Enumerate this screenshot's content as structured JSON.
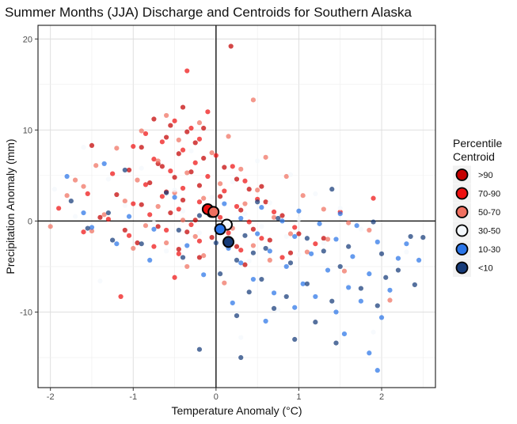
{
  "chart_data": {
    "type": "scatter",
    "title": "Summer Months (JJA) Discharge and Centroids for Southern Alaska",
    "xlabel": "Temperature Anomaly (°C)",
    "ylabel": "Precipitation Anomaly (mm)",
    "xlim": [
      -2.15,
      2.65
    ],
    "ylim": [
      -18.3,
      21.5
    ],
    "x_ticks": [
      -2,
      -1,
      0,
      1,
      2
    ],
    "x_tick_labels": [
      "-2",
      "-1",
      "0",
      "1",
      "2"
    ],
    "y_ticks": [
      -10,
      0,
      10,
      20
    ],
    "y_tick_labels": [
      "-10",
      "0",
      "10",
      "20"
    ],
    "grid": true,
    "zero_lines": true,
    "legend": {
      "title_line1": "Percentile",
      "title_line2": "Centroid",
      "position": "right"
    },
    "series": [
      {
        "name": ">90",
        "color": "#c40000",
        "centroid": {
          "x": -0.05,
          "y": 1.0
        },
        "points": [
          [
            0.18,
            19.2
          ],
          [
            -0.4,
            12.5
          ],
          [
            -0.75,
            11.2
          ],
          [
            -0.55,
            10.5
          ],
          [
            -0.35,
            9.8
          ],
          [
            -0.6,
            9.2
          ],
          [
            -0.25,
            8.6
          ],
          [
            -0.9,
            8.1
          ],
          [
            -0.45,
            7.4
          ],
          [
            -0.15,
            6.9
          ],
          [
            -0.7,
            6.3
          ],
          [
            0.1,
            5.9
          ],
          [
            -0.3,
            5.4
          ],
          [
            -1.05,
            5.6
          ],
          [
            -0.5,
            4.8
          ],
          [
            0.25,
            4.6
          ],
          [
            -0.8,
            4.2
          ],
          [
            -0.2,
            3.9
          ],
          [
            0.4,
            3.5
          ],
          [
            -0.6,
            3.2
          ],
          [
            -1.2,
            2.9
          ],
          [
            0.05,
            2.7
          ],
          [
            -0.4,
            2.3
          ],
          [
            0.6,
            2.1
          ],
          [
            -0.9,
            1.8
          ],
          [
            -0.1,
            1.5
          ],
          [
            0.3,
            1.2
          ],
          [
            -0.55,
            0.9
          ],
          [
            0.8,
            0.6
          ],
          [
            -1.4,
            0.4
          ],
          [
            -0.25,
            0.1
          ],
          [
            0.15,
            -0.3
          ],
          [
            -0.7,
            -0.6
          ],
          [
            0.45,
            -0.9
          ],
          [
            -0.35,
            -1.2
          ],
          [
            1.0,
            -1.4
          ],
          [
            -0.05,
            -1.8
          ],
          [
            0.65,
            -2.1
          ],
          [
            -0.95,
            -2.4
          ],
          [
            0.25,
            -2.8
          ],
          [
            -0.45,
            -3.1
          ],
          [
            0.9,
            -3.5
          ],
          [
            -0.2,
            -4.0
          ],
          [
            1.3,
            -1.9
          ],
          [
            -1.1,
            -1.0
          ],
          [
            0.55,
            3.8
          ],
          [
            -0.65,
            6.0
          ],
          [
            -0.15,
            10.2
          ],
          [
            -1.5,
            8.3
          ],
          [
            0.35,
            -4.8
          ]
        ]
      },
      {
        "name": "70-90",
        "color": "#ee1111",
        "centroid": {
          "x": -0.1,
          "y": 1.3
        },
        "points": [
          [
            -0.1,
            12.0
          ],
          [
            -0.5,
            11.0
          ],
          [
            -0.3,
            10.2
          ],
          [
            -0.85,
            9.6
          ],
          [
            -0.2,
            9.0
          ],
          [
            -0.65,
            8.7
          ],
          [
            -1.0,
            8.2
          ],
          [
            -0.4,
            7.8
          ],
          [
            0.0,
            7.2
          ],
          [
            -0.75,
            6.8
          ],
          [
            -0.25,
            6.4
          ],
          [
            0.2,
            6.0
          ],
          [
            -0.55,
            5.5
          ],
          [
            -1.25,
            5.2
          ],
          [
            -0.1,
            4.9
          ],
          [
            0.35,
            4.4
          ],
          [
            -0.85,
            4.0
          ],
          [
            -0.4,
            3.6
          ],
          [
            0.1,
            3.3
          ],
          [
            -1.55,
            3.0
          ],
          [
            -0.65,
            2.7
          ],
          [
            0.5,
            2.4
          ],
          [
            -0.2,
            2.1
          ],
          [
            -1.0,
            1.9
          ],
          [
            0.25,
            1.6
          ],
          [
            -0.45,
            1.3
          ],
          [
            0.7,
            1.0
          ],
          [
            -0.8,
            0.7
          ],
          [
            0.05,
            0.4
          ],
          [
            -1.3,
            0.2
          ],
          [
            0.4,
            -0.1
          ],
          [
            -0.3,
            -0.4
          ],
          [
            0.95,
            -0.7
          ],
          [
            -0.6,
            -1.0
          ],
          [
            0.15,
            -1.3
          ],
          [
            -1.05,
            -1.6
          ],
          [
            0.55,
            -1.9
          ],
          [
            -0.2,
            -2.2
          ],
          [
            1.2,
            -2.5
          ],
          [
            -0.75,
            -2.8
          ],
          [
            0.3,
            -3.2
          ],
          [
            -0.45,
            -3.6
          ],
          [
            0.8,
            -4.0
          ],
          [
            -1.6,
            -1.2
          ],
          [
            1.5,
            1.0
          ],
          [
            1.9,
            2.5
          ],
          [
            -1.9,
            1.4
          ],
          [
            -0.35,
            16.5
          ],
          [
            -1.15,
            -8.3
          ],
          [
            -0.5,
            -6.2
          ]
        ]
      },
      {
        "name": "50-70",
        "color": "#f07060",
        "centroid": {
          "x": -0.03,
          "y": 1.0
        },
        "points": [
          [
            0.45,
            13.3
          ],
          [
            -0.6,
            11.6
          ],
          [
            -0.2,
            10.8
          ],
          [
            -0.9,
            9.9
          ],
          [
            0.15,
            9.3
          ],
          [
            -0.45,
            8.9
          ],
          [
            -1.2,
            8.0
          ],
          [
            -0.05,
            7.5
          ],
          [
            0.6,
            7.0
          ],
          [
            -0.7,
            6.6
          ],
          [
            -1.45,
            6.1
          ],
          [
            0.3,
            5.7
          ],
          [
            -0.35,
            5.3
          ],
          [
            0.85,
            4.9
          ],
          [
            -0.95,
            4.5
          ],
          [
            0.05,
            4.1
          ],
          [
            -1.6,
            3.8
          ],
          [
            0.5,
            3.4
          ],
          [
            -0.5,
            3.1
          ],
          [
            1.05,
            2.8
          ],
          [
            -0.15,
            2.5
          ],
          [
            -1.1,
            2.2
          ],
          [
            0.35,
            1.9
          ],
          [
            -0.7,
            1.6
          ],
          [
            1.3,
            1.3
          ],
          [
            0.0,
            1.0
          ],
          [
            -1.35,
            0.7
          ],
          [
            0.7,
            0.4
          ],
          [
            -0.4,
            0.1
          ],
          [
            1.6,
            -0.2
          ],
          [
            -0.85,
            -0.5
          ],
          [
            0.2,
            -0.8
          ],
          [
            -1.5,
            -1.1
          ],
          [
            0.9,
            -1.4
          ],
          [
            -0.25,
            -1.7
          ],
          [
            1.35,
            -2.0
          ],
          [
            -0.6,
            -2.4
          ],
          [
            0.45,
            -2.7
          ],
          [
            -1.0,
            -3.0
          ],
          [
            1.1,
            -3.4
          ],
          [
            -0.15,
            -3.8
          ],
          [
            0.65,
            -4.3
          ],
          [
            -0.35,
            -5.0
          ],
          [
            2.1,
            -8.7
          ],
          [
            1.85,
            -1.0
          ],
          [
            -1.8,
            2.8
          ],
          [
            0.1,
            -6.8
          ],
          [
            -1.7,
            4.5
          ],
          [
            1.55,
            -5.5
          ],
          [
            -2.0,
            -0.6
          ]
        ]
      },
      {
        "name": "30-50",
        "color": "#f4f8fc",
        "centroid": {
          "x": 0.13,
          "y": -0.4
        },
        "points": [
          [
            -1.6,
            8.1
          ],
          [
            -0.3,
            7.7
          ],
          [
            0.5,
            6.6
          ],
          [
            -0.9,
            5.8
          ],
          [
            0.9,
            5.1
          ],
          [
            -1.3,
            4.6
          ],
          [
            0.2,
            4.3
          ],
          [
            -0.5,
            3.4
          ],
          [
            1.2,
            3.0
          ],
          [
            -0.05,
            2.6
          ],
          [
            0.65,
            2.0
          ],
          [
            -1.1,
            1.7
          ],
          [
            1.5,
            1.4
          ],
          [
            -0.4,
            1.1
          ],
          [
            0.35,
            0.8
          ],
          [
            -1.7,
            0.5
          ],
          [
            1.0,
            0.2
          ],
          [
            -0.75,
            -0.2
          ],
          [
            0.55,
            -0.6
          ],
          [
            1.75,
            -0.9
          ],
          [
            -0.2,
            -1.3
          ],
          [
            0.85,
            -1.7
          ],
          [
            -1.25,
            -2.0
          ],
          [
            1.3,
            -2.4
          ],
          [
            0.1,
            -2.8
          ],
          [
            -0.6,
            -3.3
          ],
          [
            1.0,
            -3.7
          ],
          [
            0.4,
            -4.4
          ],
          [
            -1.4,
            -6.6
          ],
          [
            1.6,
            -7.1
          ],
          [
            0.3,
            -12.8
          ],
          [
            2.3,
            -3.4
          ],
          [
            -1.95,
            3.5
          ],
          [
            0.75,
            -9.8
          ],
          [
            1.9,
            -12.2
          ]
        ]
      },
      {
        "name": "10-30",
        "color": "#2a75e8",
        "centroid": {
          "x": 0.05,
          "y": -0.9
        },
        "points": [
          [
            -1.8,
            4.9
          ],
          [
            -1.35,
            6.3
          ],
          [
            -0.5,
            2.6
          ],
          [
            0.1,
            1.9
          ],
          [
            0.55,
            1.5
          ],
          [
            1.0,
            1.1
          ],
          [
            1.5,
            0.8
          ],
          [
            -1.6,
            0.9
          ],
          [
            -1.05,
            0.5
          ],
          [
            0.3,
            0.3
          ],
          [
            0.8,
            0.0
          ],
          [
            1.25,
            -0.3
          ],
          [
            1.7,
            -0.5
          ],
          [
            -1.5,
            -0.7
          ],
          [
            -0.75,
            -0.9
          ],
          [
            0.05,
            -1.1
          ],
          [
            0.5,
            -1.4
          ],
          [
            0.95,
            -1.7
          ],
          [
            1.45,
            -2.0
          ],
          [
            1.95,
            -2.3
          ],
          [
            -1.2,
            -2.5
          ],
          [
            -0.35,
            -2.7
          ],
          [
            0.15,
            -3.0
          ],
          [
            0.65,
            -3.3
          ],
          [
            1.15,
            -3.6
          ],
          [
            1.65,
            -3.9
          ],
          [
            2.2,
            -4.1
          ],
          [
            -0.8,
            -4.3
          ],
          [
            0.3,
            -4.6
          ],
          [
            0.85,
            -5.0
          ],
          [
            1.35,
            -5.4
          ],
          [
            1.85,
            -5.8
          ],
          [
            -0.15,
            -5.9
          ],
          [
            0.45,
            -6.4
          ],
          [
            1.05,
            -6.9
          ],
          [
            1.6,
            -7.3
          ],
          [
            2.1,
            -7.6
          ],
          [
            0.7,
            -7.9
          ],
          [
            1.2,
            -8.3
          ],
          [
            1.75,
            -8.8
          ],
          [
            0.2,
            -9.0
          ],
          [
            0.95,
            -9.5
          ],
          [
            1.45,
            -10.0
          ],
          [
            2.0,
            -10.6
          ],
          [
            0.6,
            -11.0
          ],
          [
            1.55,
            -12.4
          ],
          [
            1.85,
            -14.5
          ],
          [
            1.95,
            -16.4
          ],
          [
            2.45,
            -4.3
          ],
          [
            2.3,
            -2.5
          ]
        ]
      },
      {
        "name": "<10",
        "color": "#153a78",
        "centroid": {
          "x": 0.15,
          "y": -2.3
        },
        "points": [
          [
            -1.1,
            5.6
          ],
          [
            -1.75,
            2.2
          ],
          [
            -0.6,
            3.1
          ],
          [
            0.5,
            2.1
          ],
          [
            1.4,
            3.5
          ],
          [
            -1.3,
            0.9
          ],
          [
            -0.2,
            0.6
          ],
          [
            0.75,
            0.3
          ],
          [
            1.9,
            -0.1
          ],
          [
            2.35,
            -1.7
          ],
          [
            -1.55,
            -0.8
          ],
          [
            -0.45,
            -1.0
          ],
          [
            0.35,
            -1.6
          ],
          [
            1.1,
            -1.9
          ],
          [
            1.6,
            -2.8
          ],
          [
            -0.9,
            -2.5
          ],
          [
            0.0,
            -2.4
          ],
          [
            0.6,
            -3.0
          ],
          [
            1.3,
            -3.3
          ],
          [
            2.0,
            -3.6
          ],
          [
            -0.4,
            -4.0
          ],
          [
            0.25,
            -4.3
          ],
          [
            0.9,
            -4.6
          ],
          [
            1.5,
            -5.0
          ],
          [
            2.2,
            -5.4
          ],
          [
            0.05,
            -5.8
          ],
          [
            0.55,
            -6.4
          ],
          [
            1.1,
            -6.9
          ],
          [
            1.75,
            -7.4
          ],
          [
            2.4,
            -7.0
          ],
          [
            0.4,
            -7.8
          ],
          [
            0.85,
            -8.3
          ],
          [
            1.4,
            -8.8
          ],
          [
            1.95,
            -9.3
          ],
          [
            0.7,
            -9.6
          ],
          [
            0.25,
            -10.4
          ],
          [
            1.2,
            -11.1
          ],
          [
            0.95,
            -13.0
          ],
          [
            1.45,
            -13.4
          ],
          [
            0.3,
            -15.0
          ],
          [
            2.05,
            -6.2
          ],
          [
            2.5,
            -1.8
          ],
          [
            -0.2,
            -14.1
          ],
          [
            0.45,
            -3.5
          ],
          [
            -1.25,
            -2.1
          ]
        ]
      }
    ]
  }
}
